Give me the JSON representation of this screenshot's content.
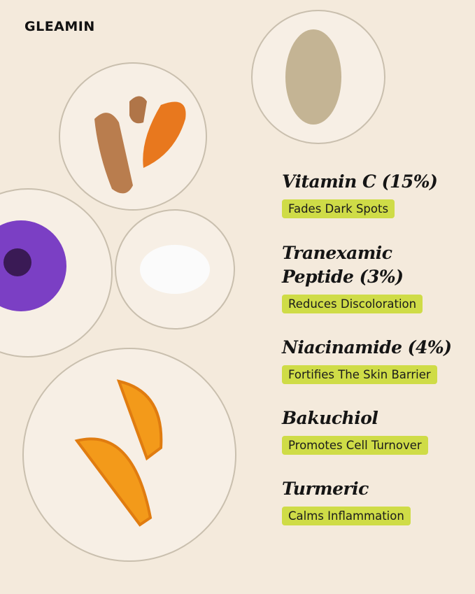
{
  "brand": "GLEAMIN",
  "colors": {
    "background": "#f4eadc",
    "badge": "#cfdc47",
    "text": "#151515"
  },
  "ingredients": [
    {
      "name": "Vitamin C (15%)",
      "benefit": "Fades Dark Spots"
    },
    {
      "name": "Tranexamic Peptide (3%)",
      "benefit": "Reduces Discoloration"
    },
    {
      "name": "Niacinamide (4%)",
      "benefit": "Fortifies The Skin Barrier"
    },
    {
      "name": "Bakuchiol",
      "benefit": "Promotes Cell Turnover"
    },
    {
      "name": "Turmeric",
      "benefit": "Calms Inflammation"
    }
  ]
}
